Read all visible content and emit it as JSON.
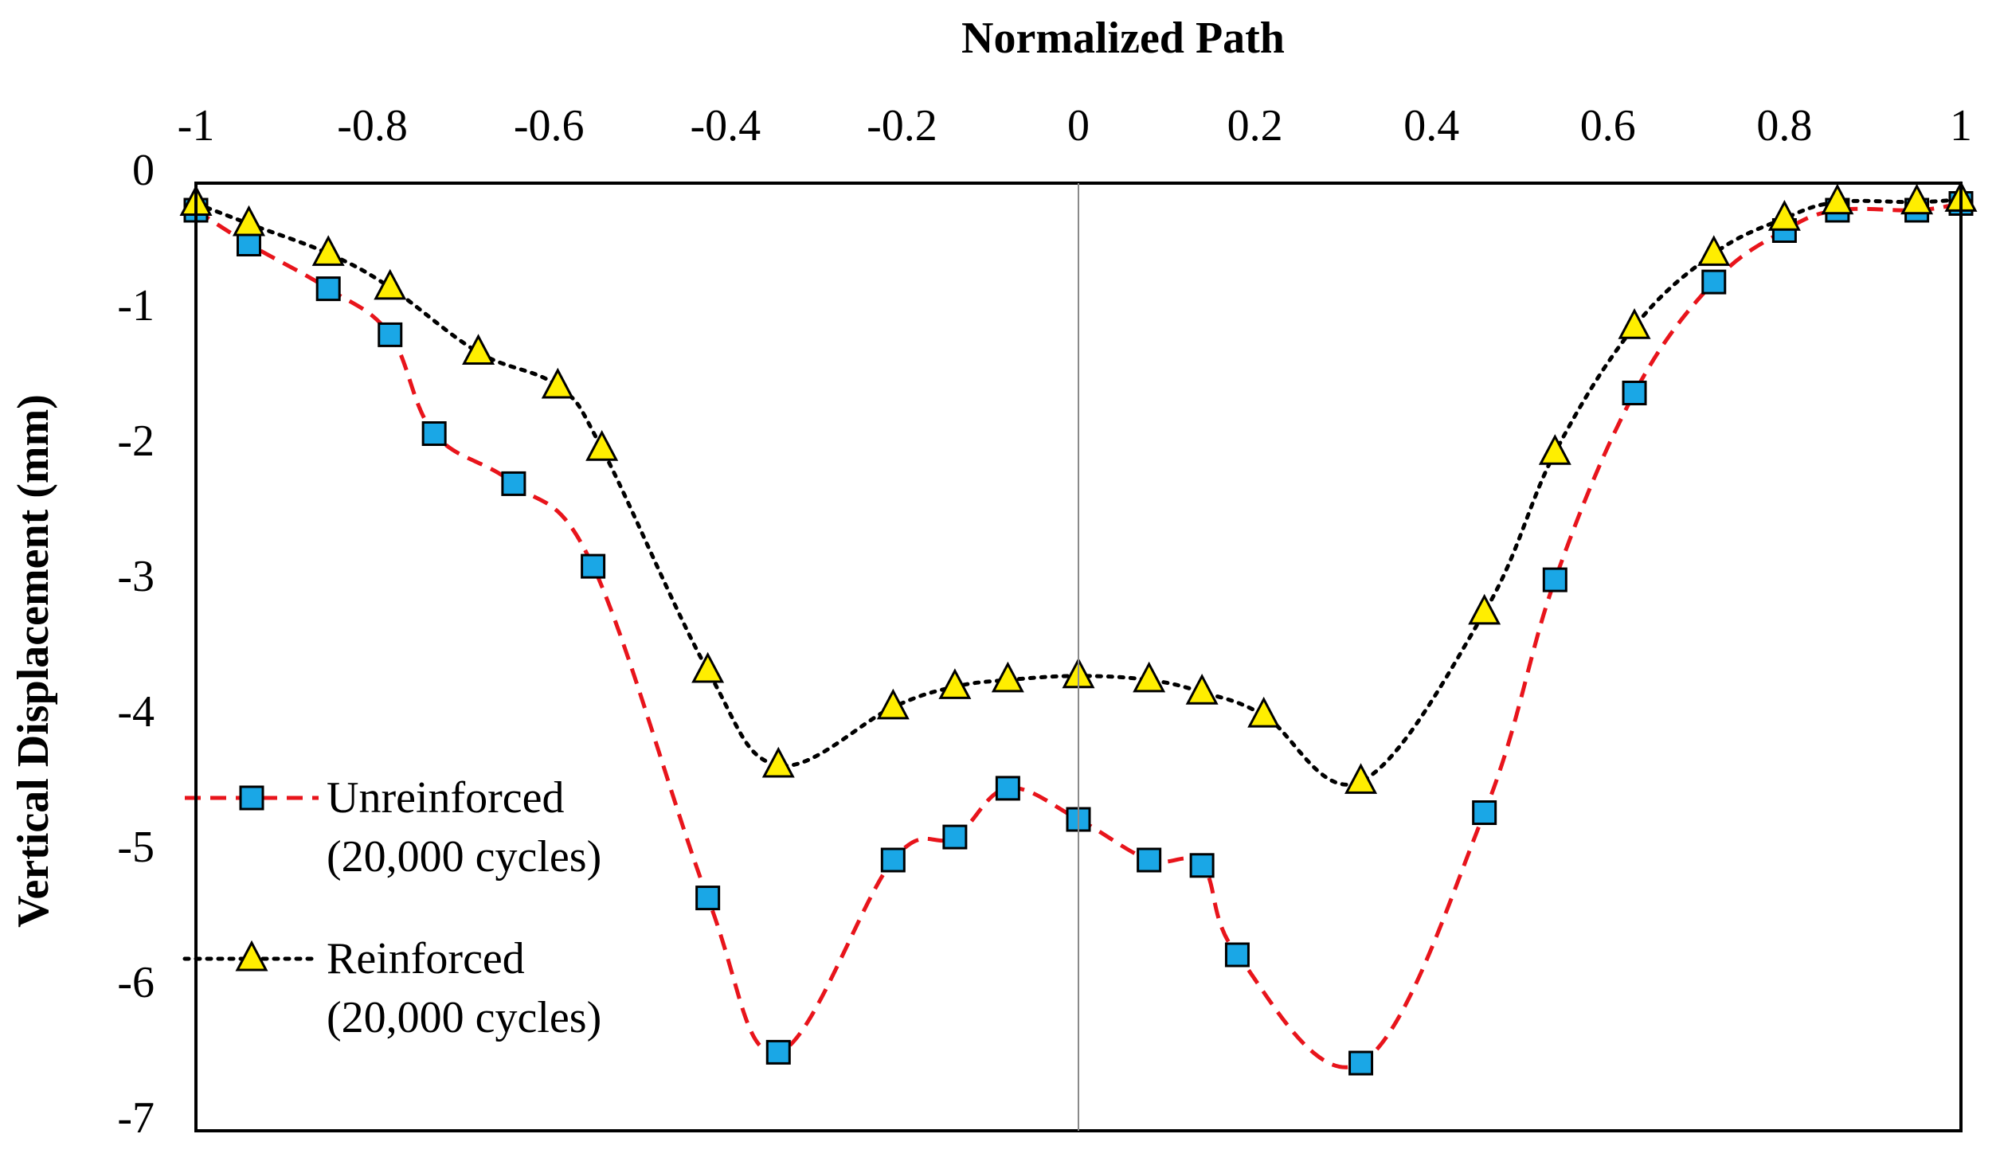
{
  "chart_data": {
    "type": "line",
    "title": "Normalized Path",
    "xlabel": "Normalized Path",
    "ylabel": "Vertical Displacement (mm)",
    "xlim": [
      -1,
      1
    ],
    "ylim": [
      -7,
      0
    ],
    "x_ticks": [
      "-1",
      "-0.8",
      "-0.6",
      "-0.4",
      "-0.2",
      "0",
      "0.2",
      "0.4",
      "0.6",
      "0.8",
      "1"
    ],
    "y_ticks": [
      "0",
      "-1",
      "-2",
      "-3",
      "-4",
      "-5",
      "-6",
      "-7"
    ],
    "x_tick_values": [
      -1,
      -0.8,
      -0.6,
      -0.4,
      -0.2,
      0,
      0.2,
      0.4,
      0.6,
      0.8,
      1
    ],
    "y_tick_values": [
      0,
      -1,
      -2,
      -3,
      -4,
      -5,
      -6,
      -7
    ],
    "center_line_x": 0,
    "legend_position": "left",
    "series": [
      {
        "name": "Unreinforced",
        "name_line2": "(20,000 cycles)",
        "color": "#e8141b",
        "marker_color": "#1aa7e6",
        "marker": "square",
        "line_style": "dashed",
        "x": [
          -1,
          -0.94,
          -0.85,
          -0.78,
          -0.73,
          -0.64,
          -0.55,
          -0.42,
          -0.34,
          -0.21,
          -0.14,
          -0.08,
          0,
          0.08,
          0.14,
          0.18,
          0.32,
          0.46,
          0.54,
          0.63,
          0.72,
          0.8,
          0.86,
          0.95,
          1
        ],
        "values": [
          -0.2,
          -0.45,
          -0.78,
          -1.12,
          -1.85,
          -2.22,
          -2.83,
          -5.28,
          -6.42,
          -5.0,
          -4.83,
          -4.47,
          -4.7,
          -5.0,
          -5.04,
          -5.7,
          -6.5,
          -4.65,
          -2.93,
          -1.55,
          -0.73,
          -0.35,
          -0.2,
          -0.2,
          -0.15
        ]
      },
      {
        "name": "Reinforced",
        "name_line2": "(20,000 cycles)",
        "color": "#000000",
        "marker_color": "#ffee00",
        "marker": "triangle",
        "line_style": "dotted",
        "x": [
          -1,
          -0.94,
          -0.85,
          -0.78,
          -0.68,
          -0.59,
          -0.54,
          -0.42,
          -0.34,
          -0.21,
          -0.14,
          -0.08,
          0,
          0.08,
          0.14,
          0.21,
          0.32,
          0.46,
          0.54,
          0.63,
          0.72,
          0.8,
          0.86,
          0.95,
          1
        ],
        "values": [
          -0.15,
          -0.3,
          -0.52,
          -0.77,
          -1.25,
          -1.5,
          -1.96,
          -3.6,
          -4.3,
          -3.87,
          -3.72,
          -3.67,
          -3.64,
          -3.67,
          -3.76,
          -3.93,
          -4.42,
          -3.17,
          -1.99,
          -1.06,
          -0.52,
          -0.26,
          -0.14,
          -0.14,
          -0.12
        ]
      }
    ]
  }
}
